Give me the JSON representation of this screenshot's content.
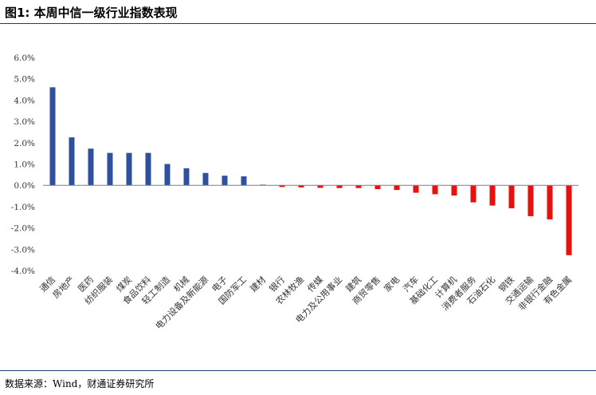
{
  "title": "图1: 本周中信一级行业指数表现",
  "source": "数据来源：Wind，财通证券研究所",
  "colors": {
    "positive": "#2f4f9f",
    "negative": "#e8120c",
    "axis": "#7f7f7f",
    "rule": "#1f3c7a"
  },
  "chart_data": {
    "type": "bar",
    "title": "",
    "xlabel": "",
    "ylabel": "",
    "ylim": [
      -4.0,
      6.0
    ],
    "yticks": [
      "6.0%",
      "5.0%",
      "4.0%",
      "3.0%",
      "2.0%",
      "1.0%",
      "0.0%",
      "-1.0%",
      "-2.0%",
      "-3.0%",
      "-4.0%"
    ],
    "ytick_values": [
      6,
      5,
      4,
      3,
      2,
      1,
      0,
      -1,
      -2,
      -3,
      -4
    ],
    "grid": false,
    "legend": "none",
    "categories": [
      "通信",
      "房地产",
      "医药",
      "纺织服装",
      "煤炭",
      "食品饮料",
      "轻工制造",
      "机械",
      "电力设备及新能源",
      "电子",
      "国防军工",
      "建材",
      "银行",
      "农林牧渔",
      "传媒",
      "电力及公用事业",
      "建筑",
      "商贸零售",
      "家电",
      "汽车",
      "基础化工",
      "计算机",
      "消费者服务",
      "石油石化",
      "钢铁",
      "交通运输",
      "非银行金融",
      "有色金属"
    ],
    "values": [
      4.6,
      2.25,
      1.72,
      1.52,
      1.52,
      1.52,
      1.0,
      0.8,
      0.58,
      0.45,
      0.42,
      0.05,
      -0.08,
      -0.1,
      -0.12,
      -0.13,
      -0.13,
      -0.18,
      -0.22,
      -0.35,
      -0.42,
      -0.48,
      -0.8,
      -0.95,
      -1.08,
      -1.45,
      -1.6,
      -3.28
    ]
  }
}
